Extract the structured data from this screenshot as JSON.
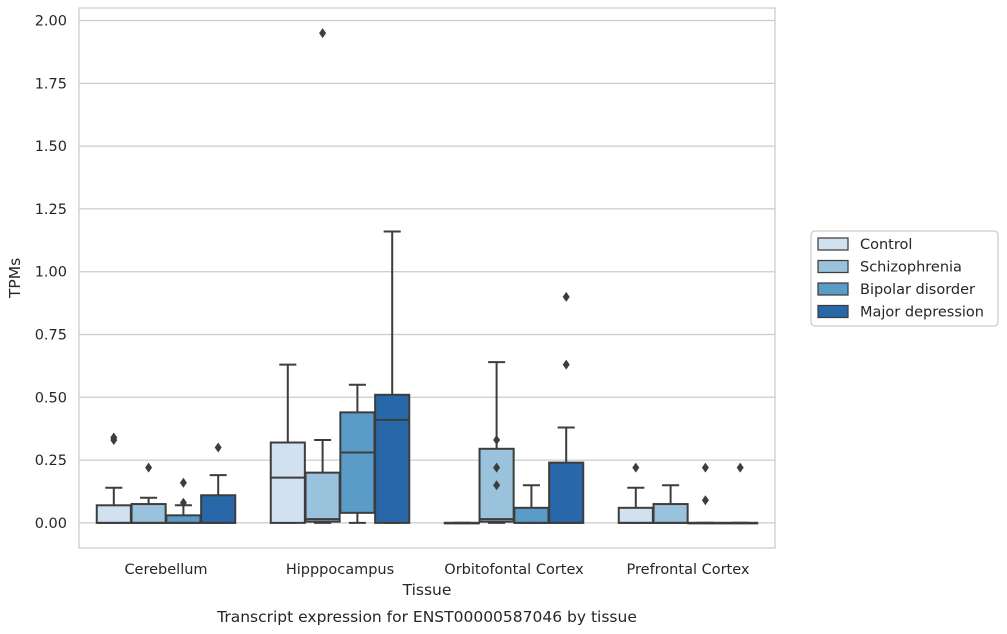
{
  "chart_data": {
    "type": "box",
    "caption": "Transcript expression for ENST00000587046 by tissue",
    "xlabel": "Tissue",
    "ylabel": "TPMs",
    "ylim": [
      -0.1,
      2.05
    ],
    "yticks": [
      "0.00",
      "0.25",
      "0.50",
      "0.75",
      "1.00",
      "1.25",
      "1.50",
      "1.75",
      "2.00"
    ],
    "categories": [
      "Cerebellum",
      "Hipppocampus",
      "Orbitofontal Cortex",
      "Prefrontal Cortex"
    ],
    "grid": true,
    "legend_position": "right",
    "series": [
      {
        "name": "Control",
        "color": "#d1e1f0",
        "boxes": [
          {
            "q1": 0,
            "median": 0,
            "q3": 0.07,
            "whisker_low": 0,
            "whisker_high": 0.14,
            "outliers": [
              0.33,
              0.34
            ]
          },
          {
            "q1": 0,
            "median": 0.18,
            "q3": 0.32,
            "whisker_low": 0,
            "whisker_high": 0.63,
            "outliers": []
          },
          {
            "q1": 0,
            "median": 0,
            "q3": 0,
            "whisker_low": 0,
            "whisker_high": 0,
            "outliers": []
          },
          {
            "q1": 0,
            "median": 0,
            "q3": 0.06,
            "whisker_low": 0,
            "whisker_high": 0.14,
            "outliers": [
              0.22
            ]
          }
        ]
      },
      {
        "name": "Schizophrenia",
        "color": "#9ac2dc",
        "boxes": [
          {
            "q1": 0,
            "median": 0,
            "q3": 0.075,
            "whisker_low": 0,
            "whisker_high": 0.1,
            "outliers": [
              0.22
            ]
          },
          {
            "q1": 0.005,
            "median": 0.015,
            "q3": 0.2,
            "whisker_low": 0,
            "whisker_high": 0.33,
            "outliers": [
              1.95
            ]
          },
          {
            "q1": 0.005,
            "median": 0.015,
            "q3": 0.295,
            "whisker_low": 0,
            "whisker_high": 0.64,
            "outliers": [
              0.15,
              0.22,
              0.33
            ]
          },
          {
            "q1": 0,
            "median": 0,
            "q3": 0.075,
            "whisker_low": 0,
            "whisker_high": 0.15,
            "outliers": []
          }
        ]
      },
      {
        "name": "Bipolar disorder",
        "color": "#5a9bc8",
        "boxes": [
          {
            "q1": 0,
            "median": 0,
            "q3": 0.03,
            "whisker_low": 0,
            "whisker_high": 0.07,
            "outliers": [
              0.08,
              0.16
            ]
          },
          {
            "q1": 0.04,
            "median": 0.28,
            "q3": 0.44,
            "whisker_low": 0,
            "whisker_high": 0.55,
            "outliers": []
          },
          {
            "q1": 0,
            "median": 0,
            "q3": 0.06,
            "whisker_low": 0,
            "whisker_high": 0.15,
            "outliers": []
          },
          {
            "q1": 0,
            "median": 0,
            "q3": 0,
            "whisker_low": 0,
            "whisker_high": 0,
            "outliers": [
              0.09,
              0.22
            ]
          }
        ]
      },
      {
        "name": "Major depression",
        "color": "#2867a8",
        "boxes": [
          {
            "q1": 0,
            "median": 0,
            "q3": 0.11,
            "whisker_low": 0,
            "whisker_high": 0.19,
            "outliers": [
              0.3
            ]
          },
          {
            "q1": 0,
            "median": 0.41,
            "q3": 0.51,
            "whisker_low": 0,
            "whisker_high": 1.16,
            "outliers": []
          },
          {
            "q1": 0,
            "median": 0,
            "q3": 0.24,
            "whisker_low": 0,
            "whisker_high": 0.38,
            "outliers": [
              0.63,
              0.9
            ]
          },
          {
            "q1": 0,
            "median": 0,
            "q3": 0,
            "whisker_low": 0,
            "whisker_high": 0,
            "outliers": [
              0.22
            ]
          }
        ]
      }
    ]
  }
}
